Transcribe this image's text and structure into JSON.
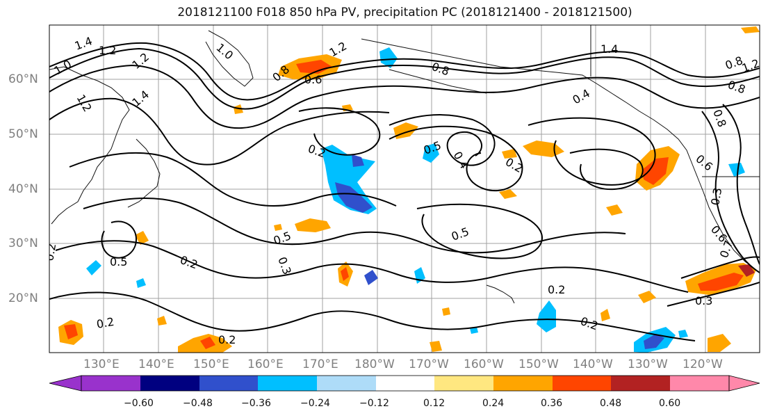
{
  "title": "2018121100 F018 850 hPa PV, precipitation PC (2018121400 - 2018121500)",
  "lat_labels": [
    "60°N",
    "50°N",
    "40°N",
    "30°N",
    "20°N"
  ],
  "lon_labels": [
    "130°E",
    "140°E",
    "150°E",
    "160°E",
    "170°E",
    "180°W",
    "170°W",
    "160°W",
    "150°W",
    "140°W",
    "130°W",
    "120°W"
  ],
  "contour_labels": [
    "1.4",
    "1.2",
    "1.0",
    "1.2",
    "1.4",
    "1.2",
    "1.0",
    "1.2",
    "0.8",
    "0.6",
    "0.8",
    "0.2",
    "0.5",
    "0.4",
    "0.2",
    "0.4",
    "0.3",
    "0.2",
    "0.5",
    "0.2",
    "0.5",
    "0.2",
    "0.2",
    "0.2",
    "0.2",
    "0.3",
    "0.3",
    "0.5",
    "0.6",
    "0.7",
    "0.6",
    "0.8",
    "0.8",
    "1.4",
    "1.2",
    "0.8"
  ],
  "colorbar": {
    "colors": [
      "#9932cc",
      "#000080",
      "#3050cc",
      "#00bfff",
      "#aedcf8",
      "#ffffff",
      "#ffe780",
      "#ffa500",
      "#ff4500",
      "#b22222",
      "#ff88aa"
    ],
    "ticks": [
      "−0.60",
      "−0.48",
      "−0.36",
      "−0.24",
      "−0.12",
      "0.12",
      "0.24",
      "0.36",
      "0.48",
      "0.60"
    ]
  }
}
